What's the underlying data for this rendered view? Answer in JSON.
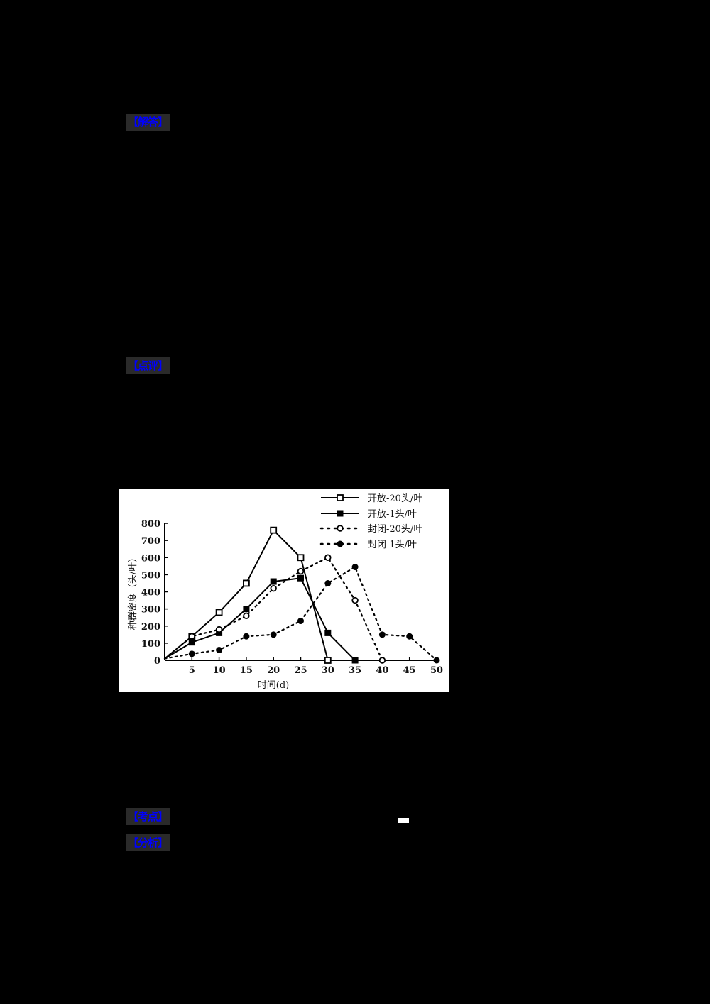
{
  "page": {
    "background": "#000000"
  },
  "sections": {
    "jieda": {
      "label": "【解答】"
    },
    "dianping": {
      "label": "【点评】"
    },
    "kaodian": {
      "label": "【考点】"
    },
    "fenxi": {
      "label": "【分析】"
    }
  },
  "colors": {
    "tag_text": "#0000ff",
    "tag_bg": "#2a2a2a",
    "chart_bg": "#ffffff",
    "line": "#000000"
  },
  "chart_data": {
    "type": "line",
    "title": "",
    "xlabel": "时间(d)",
    "ylabel": "种群密度（头/叶）",
    "x": [
      0,
      5,
      10,
      15,
      20,
      25,
      30,
      35,
      40,
      45,
      50
    ],
    "xticks": [
      "5",
      "10",
      "15",
      "20",
      "25",
      "30",
      "35",
      "40",
      "45",
      "50"
    ],
    "yticks": [
      "0",
      "100",
      "200",
      "300",
      "400",
      "500",
      "600",
      "700",
      "800"
    ],
    "xlim": [
      0,
      50
    ],
    "ylim": [
      0,
      800
    ],
    "grid": false,
    "legend_position": "top-right",
    "series": [
      {
        "name": "开放-20头/叶",
        "style": "solid",
        "marker": "open-square",
        "x": [
          0,
          5,
          10,
          15,
          20,
          25,
          30
        ],
        "values": [
          10,
          140,
          280,
          450,
          760,
          600,
          0
        ]
      },
      {
        "name": "开放-1头/叶",
        "style": "solid",
        "marker": "filled-square",
        "x": [
          0,
          5,
          10,
          15,
          20,
          25,
          30,
          35
        ],
        "values": [
          10,
          105,
          160,
          300,
          460,
          480,
          160,
          0
        ]
      },
      {
        "name": "封闭-20头/叶",
        "style": "dotted",
        "marker": "open-circle",
        "x": [
          0,
          5,
          10,
          15,
          20,
          25,
          30,
          35,
          40
        ],
        "values": [
          10,
          140,
          180,
          260,
          420,
          520,
          600,
          350,
          0
        ]
      },
      {
        "name": "封闭-1头/叶",
        "style": "dotted",
        "marker": "filled-circle",
        "x": [
          0,
          5,
          10,
          15,
          20,
          25,
          30,
          35,
          40,
          45,
          50
        ],
        "values": [
          10,
          38,
          60,
          140,
          150,
          230,
          450,
          545,
          150,
          140,
          0
        ]
      }
    ]
  }
}
